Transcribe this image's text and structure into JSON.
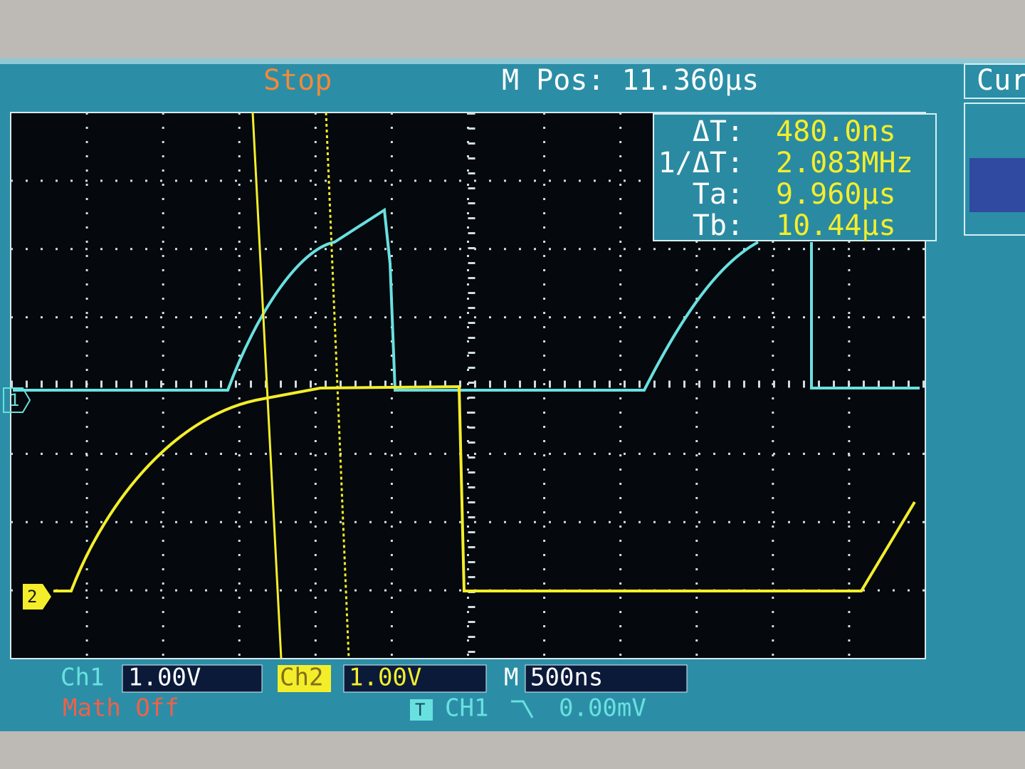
{
  "header": {
    "status": "Stop",
    "position": "M Pos: 11.360μs",
    "side_tab": "Cur"
  },
  "cursor_panel": {
    "rows": [
      {
        "label": "ΔT:",
        "value": "480.0ns"
      },
      {
        "label": "1/ΔT:",
        "value": "2.083MHz"
      },
      {
        "label": "Ta:",
        "value": "9.960μs"
      },
      {
        "label": "Tb:",
        "value": "10.44μs"
      }
    ]
  },
  "markers": {
    "ch1": "1",
    "ch2": "2",
    "trigger": "T"
  },
  "footer": {
    "ch1_label": "Ch1",
    "ch1_scale": "1.00V",
    "ch2_label": "Ch2",
    "ch2_scale": "1.00V",
    "time_label": "M",
    "time_scale": "500ns",
    "math": "Math Off",
    "trigger_source": "CH1",
    "trigger_level": "0.00mV"
  }
}
